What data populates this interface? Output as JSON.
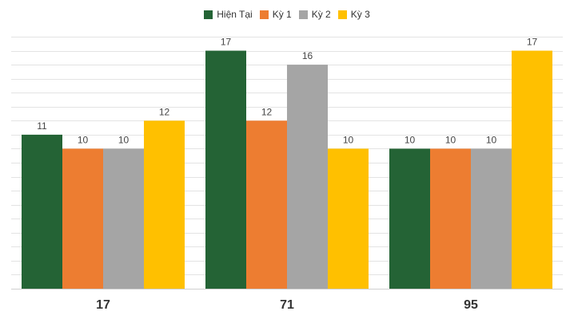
{
  "chart_data": {
    "type": "bar",
    "categories": [
      "17",
      "71",
      "95"
    ],
    "series": [
      {
        "name": "Hiện Tại",
        "color": "#246335",
        "values": [
          11,
          17,
          10
        ]
      },
      {
        "name": "Kỳ 1",
        "color": "#ED7D31",
        "values": [
          10,
          12,
          10
        ]
      },
      {
        "name": "Kỳ 2",
        "color": "#A5A5A5",
        "values": [
          10,
          16,
          10
        ]
      },
      {
        "name": "Kỳ 3",
        "color": "#FFC000",
        "values": [
          12,
          10,
          17
        ]
      }
    ],
    "ylim": [
      0,
      18
    ],
    "grid": true,
    "legend_position": "top-center",
    "data_labels": true
  }
}
